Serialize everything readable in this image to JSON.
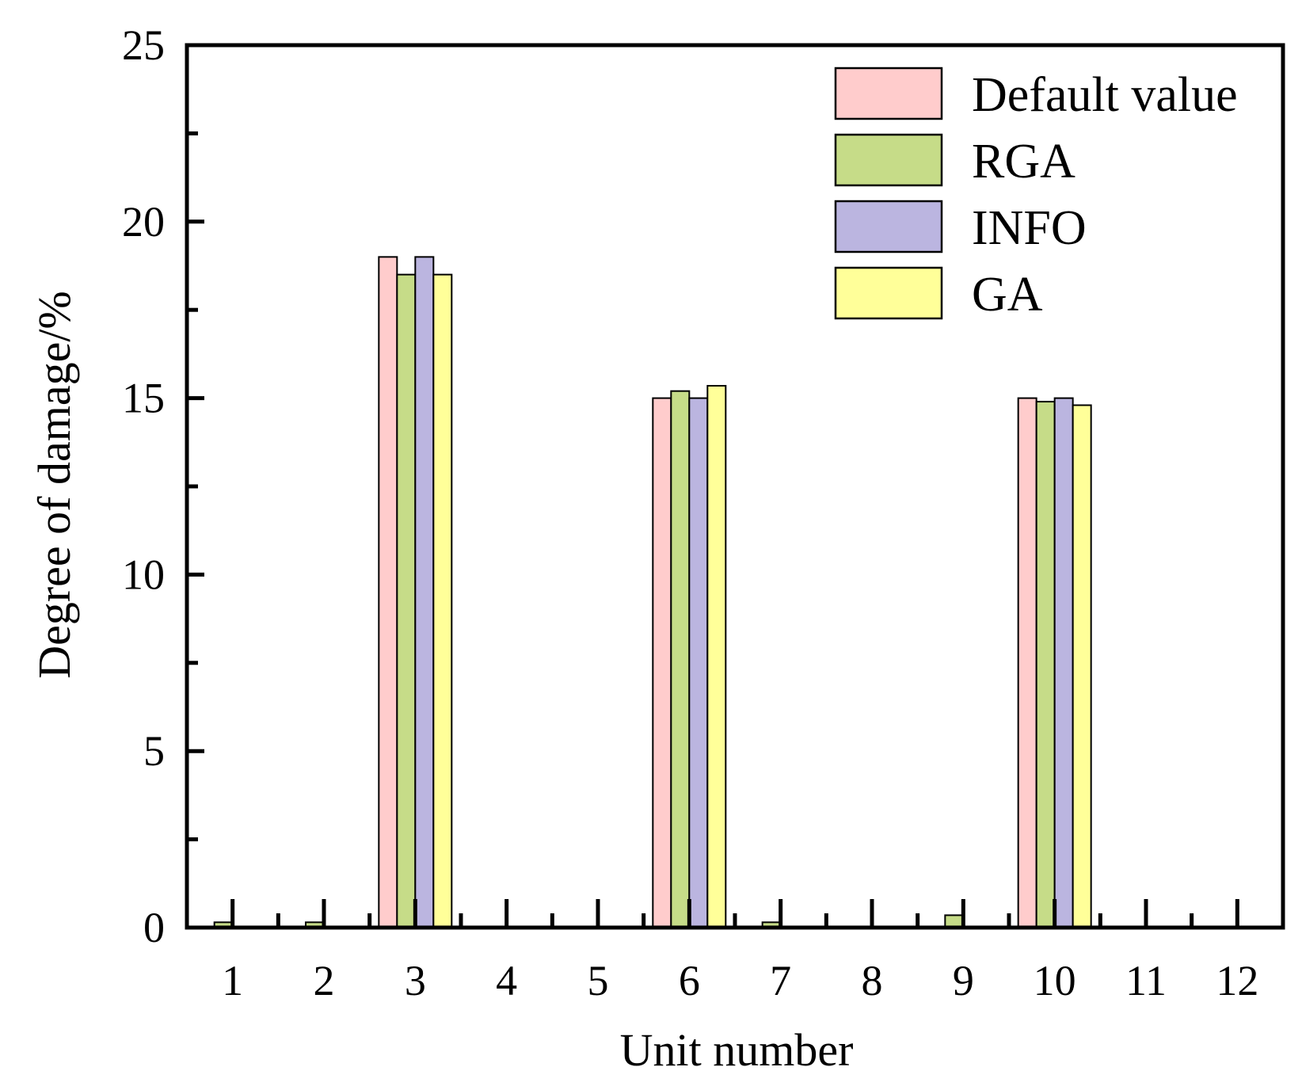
{
  "chart_data": {
    "type": "bar",
    "title": "",
    "xlabel": "Unit number",
    "ylabel": "Degree of damage/%",
    "ylim": [
      0,
      25
    ],
    "yticks": [
      0,
      5,
      10,
      15,
      20,
      25
    ],
    "categories": [
      "1",
      "2",
      "3",
      "4",
      "5",
      "6",
      "7",
      "8",
      "9",
      "10",
      "11",
      "12"
    ],
    "grid": false,
    "legend_position": "top-right",
    "series": [
      {
        "name": "Default value",
        "color": "#FFCCCC",
        "values": [
          0,
          0,
          19.0,
          0,
          0,
          15.0,
          0,
          0,
          0,
          15.0,
          0,
          0
        ]
      },
      {
        "name": "RGA",
        "color": "#C6DC88",
        "values": [
          0.15,
          0.15,
          18.5,
          0,
          0,
          15.2,
          0.15,
          0,
          0.35,
          14.9,
          0,
          0
        ]
      },
      {
        "name": "INFO",
        "color": "#BBB5E0",
        "values": [
          0,
          0,
          19.0,
          0,
          0,
          15.0,
          0,
          0,
          0,
          15.0,
          0,
          0
        ]
      },
      {
        "name": "GA",
        "color": "#FFFF99",
        "values": [
          0,
          0,
          18.5,
          0,
          0,
          15.35,
          0,
          0,
          0,
          14.8,
          0,
          0
        ]
      }
    ]
  }
}
